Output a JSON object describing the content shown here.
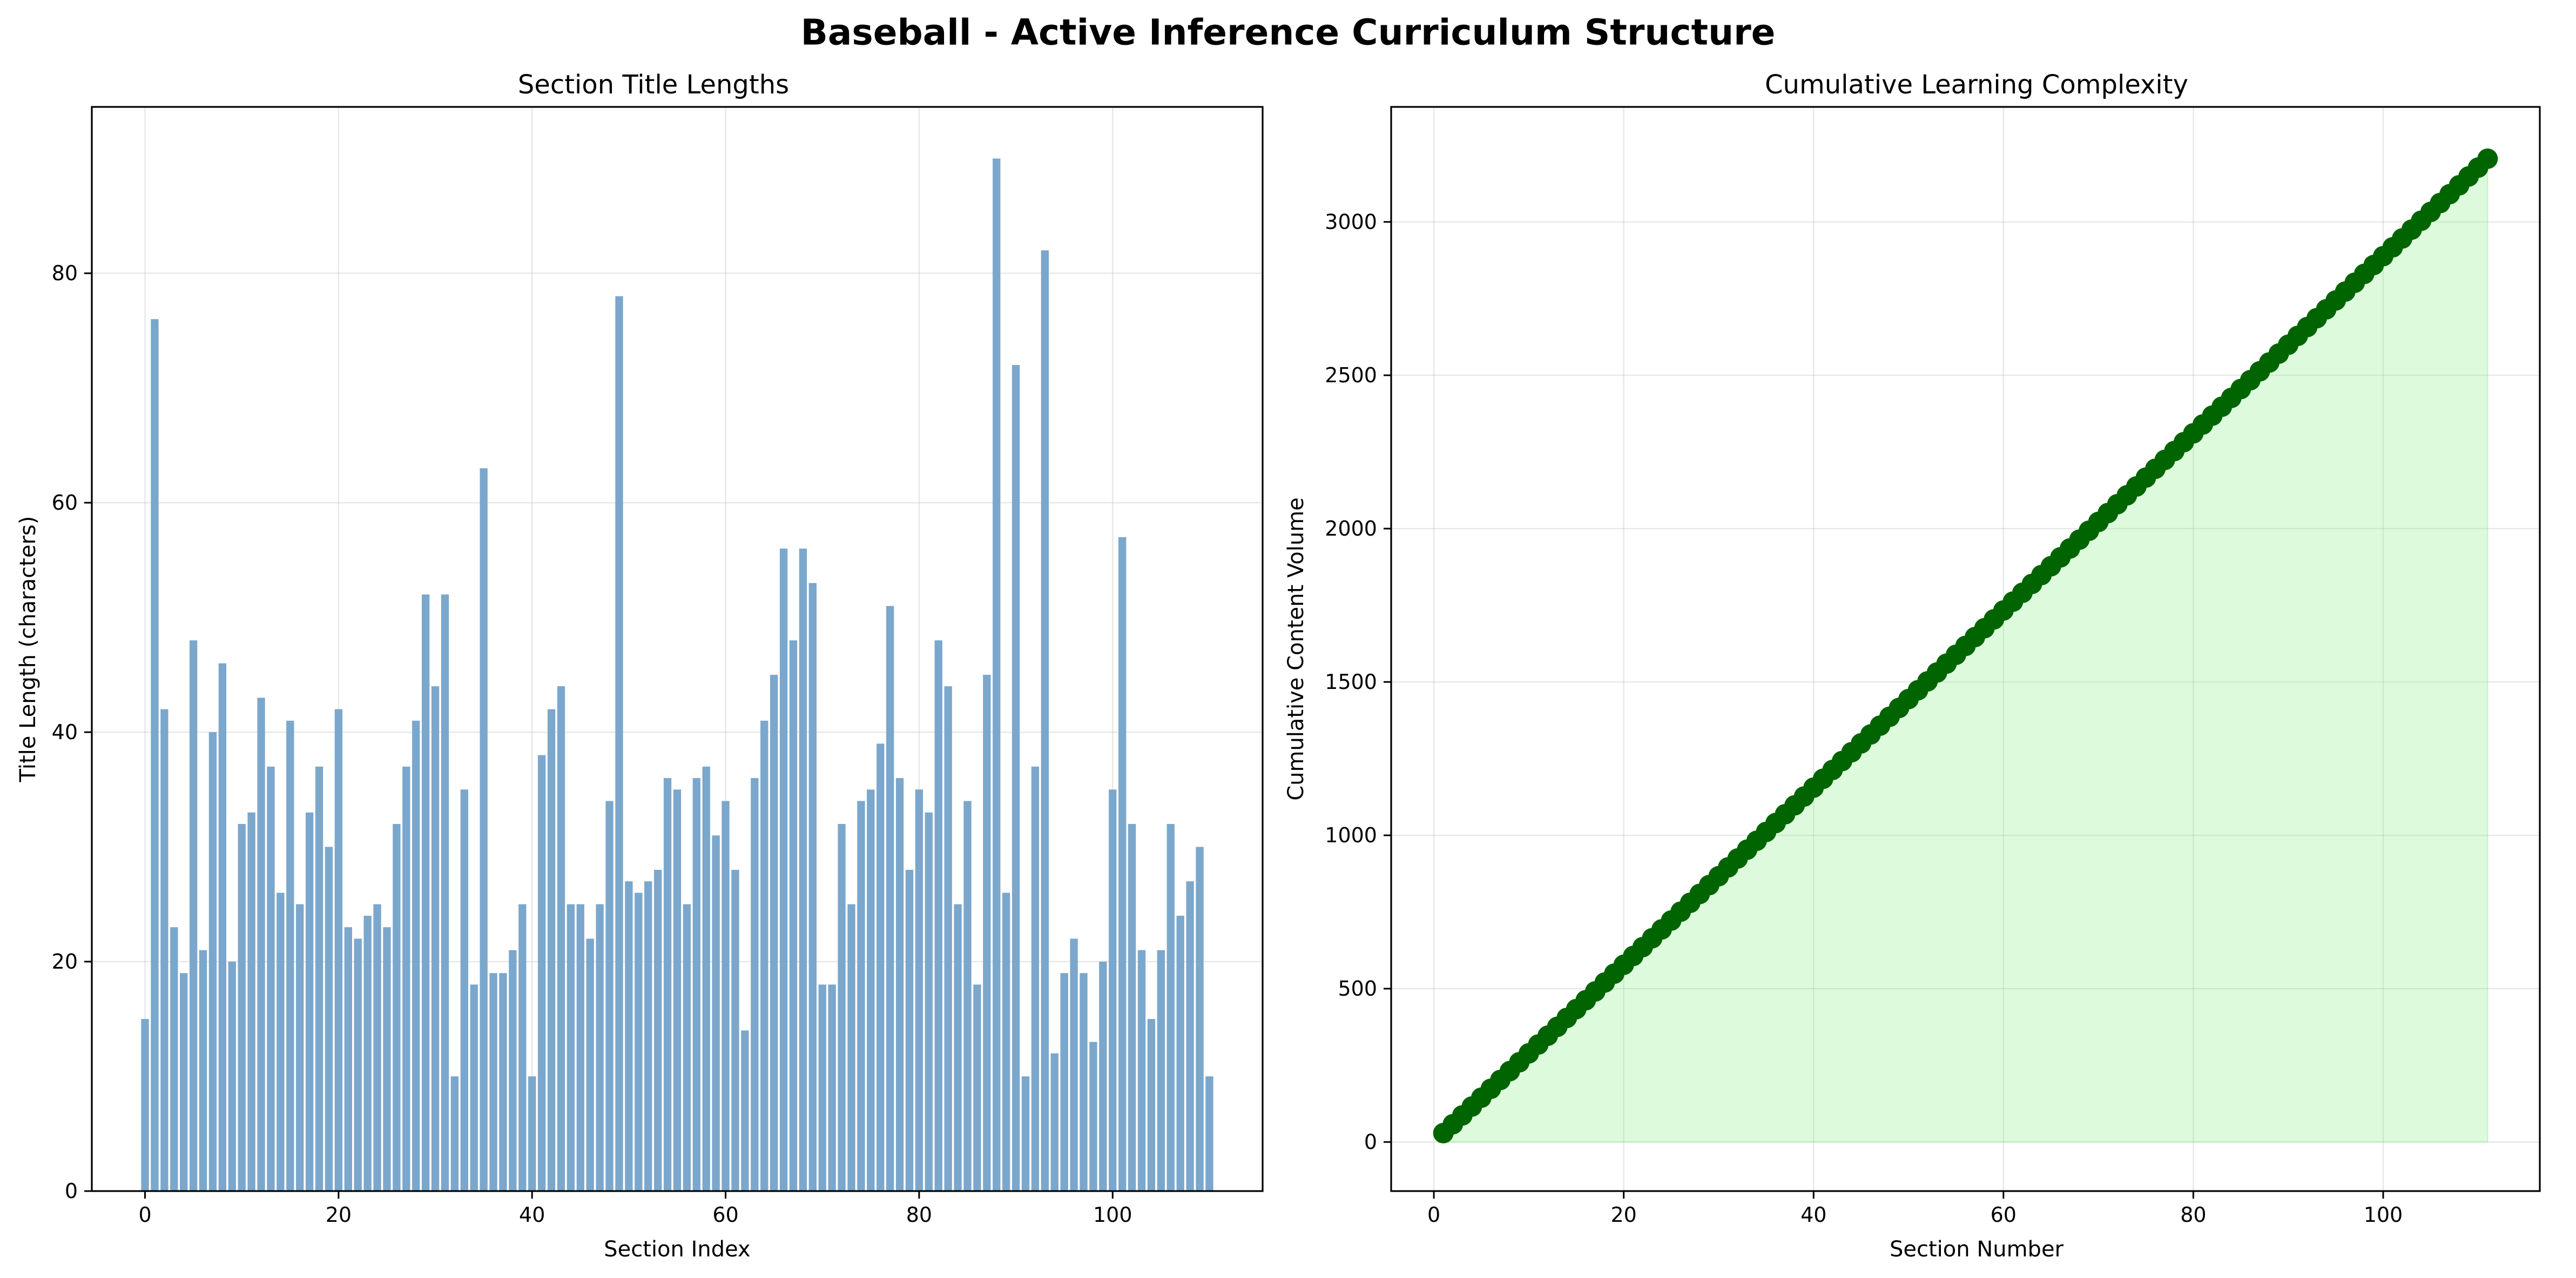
{
  "chart_data": [
    {
      "type": "bar",
      "suptitle": "Baseball - Active Inference Curriculum Structure",
      "title": "Section Title Lengths",
      "xlabel": "Section Index",
      "ylabel": "Title Length (characters)",
      "xlim": [
        -5.5,
        115.5
      ],
      "ylim": [
        0,
        94.5
      ],
      "xticks": [
        0,
        20,
        40,
        60,
        80,
        100
      ],
      "yticks": [
        0,
        20,
        40,
        60,
        80
      ],
      "grid": true,
      "color": "#7ba7cc",
      "x": [
        0,
        1,
        2,
        3,
        4,
        5,
        6,
        7,
        8,
        9,
        10,
        11,
        12,
        13,
        14,
        15,
        16,
        17,
        18,
        19,
        20,
        21,
        22,
        23,
        24,
        25,
        26,
        27,
        28,
        29,
        30,
        31,
        32,
        33,
        34,
        35,
        36,
        37,
        38,
        39,
        40,
        41,
        42,
        43,
        44,
        45,
        46,
        47,
        48,
        49,
        50,
        51,
        52,
        53,
        54,
        55,
        56,
        57,
        58,
        59,
        60,
        61,
        62,
        63,
        64,
        65,
        66,
        67,
        68,
        69,
        70,
        71,
        72,
        73,
        74,
        75,
        76,
        77,
        78,
        79,
        80,
        81,
        82,
        83,
        84,
        85,
        86,
        87,
        88,
        89,
        90,
        91,
        92,
        93,
        94,
        95,
        96,
        97,
        98,
        99,
        100,
        101,
        102,
        103,
        104,
        105,
        106,
        107,
        108,
        109,
        110
      ],
      "values": [
        15,
        76,
        42,
        23,
        19,
        48,
        21,
        40,
        46,
        20,
        32,
        33,
        43,
        37,
        26,
        41,
        25,
        33,
        37,
        30,
        42,
        23,
        22,
        24,
        25,
        23,
        32,
        37,
        41,
        52,
        44,
        52,
        10,
        35,
        18,
        63,
        19,
        19,
        21,
        25,
        10,
        38,
        42,
        44,
        25,
        25,
        22,
        25,
        34,
        78,
        27,
        26,
        27,
        28,
        36,
        35,
        25,
        36,
        37,
        31,
        34,
        28,
        14,
        36,
        41,
        45,
        56,
        48,
        56,
        53,
        18,
        18,
        32,
        25,
        34,
        35,
        39,
        51,
        36,
        28,
        35,
        33,
        48,
        44,
        25,
        34,
        18,
        45,
        90,
        26,
        72,
        10,
        37,
        82,
        12,
        19,
        22,
        19,
        13,
        20,
        35,
        57,
        32,
        21,
        15,
        21,
        32,
        24,
        27,
        30,
        10
      ]
    },
    {
      "type": "area",
      "title": "Cumulative Learning Complexity",
      "xlabel": "Section Number",
      "ylabel": "Cumulative Content Volume",
      "x_start": 1,
      "x_end": 111,
      "y_start": 29,
      "y_end": 3206,
      "xlim": [
        -4.5,
        116.5
      ],
      "ylim": [
        -160,
        3375
      ],
      "xticks": [
        0,
        20,
        40,
        60,
        80,
        100
      ],
      "yticks": [
        0,
        500,
        1000,
        1500,
        2000,
        2500,
        3000
      ],
      "grid": true,
      "line_color": "#006400",
      "fill_color": "#90ee90"
    }
  ]
}
